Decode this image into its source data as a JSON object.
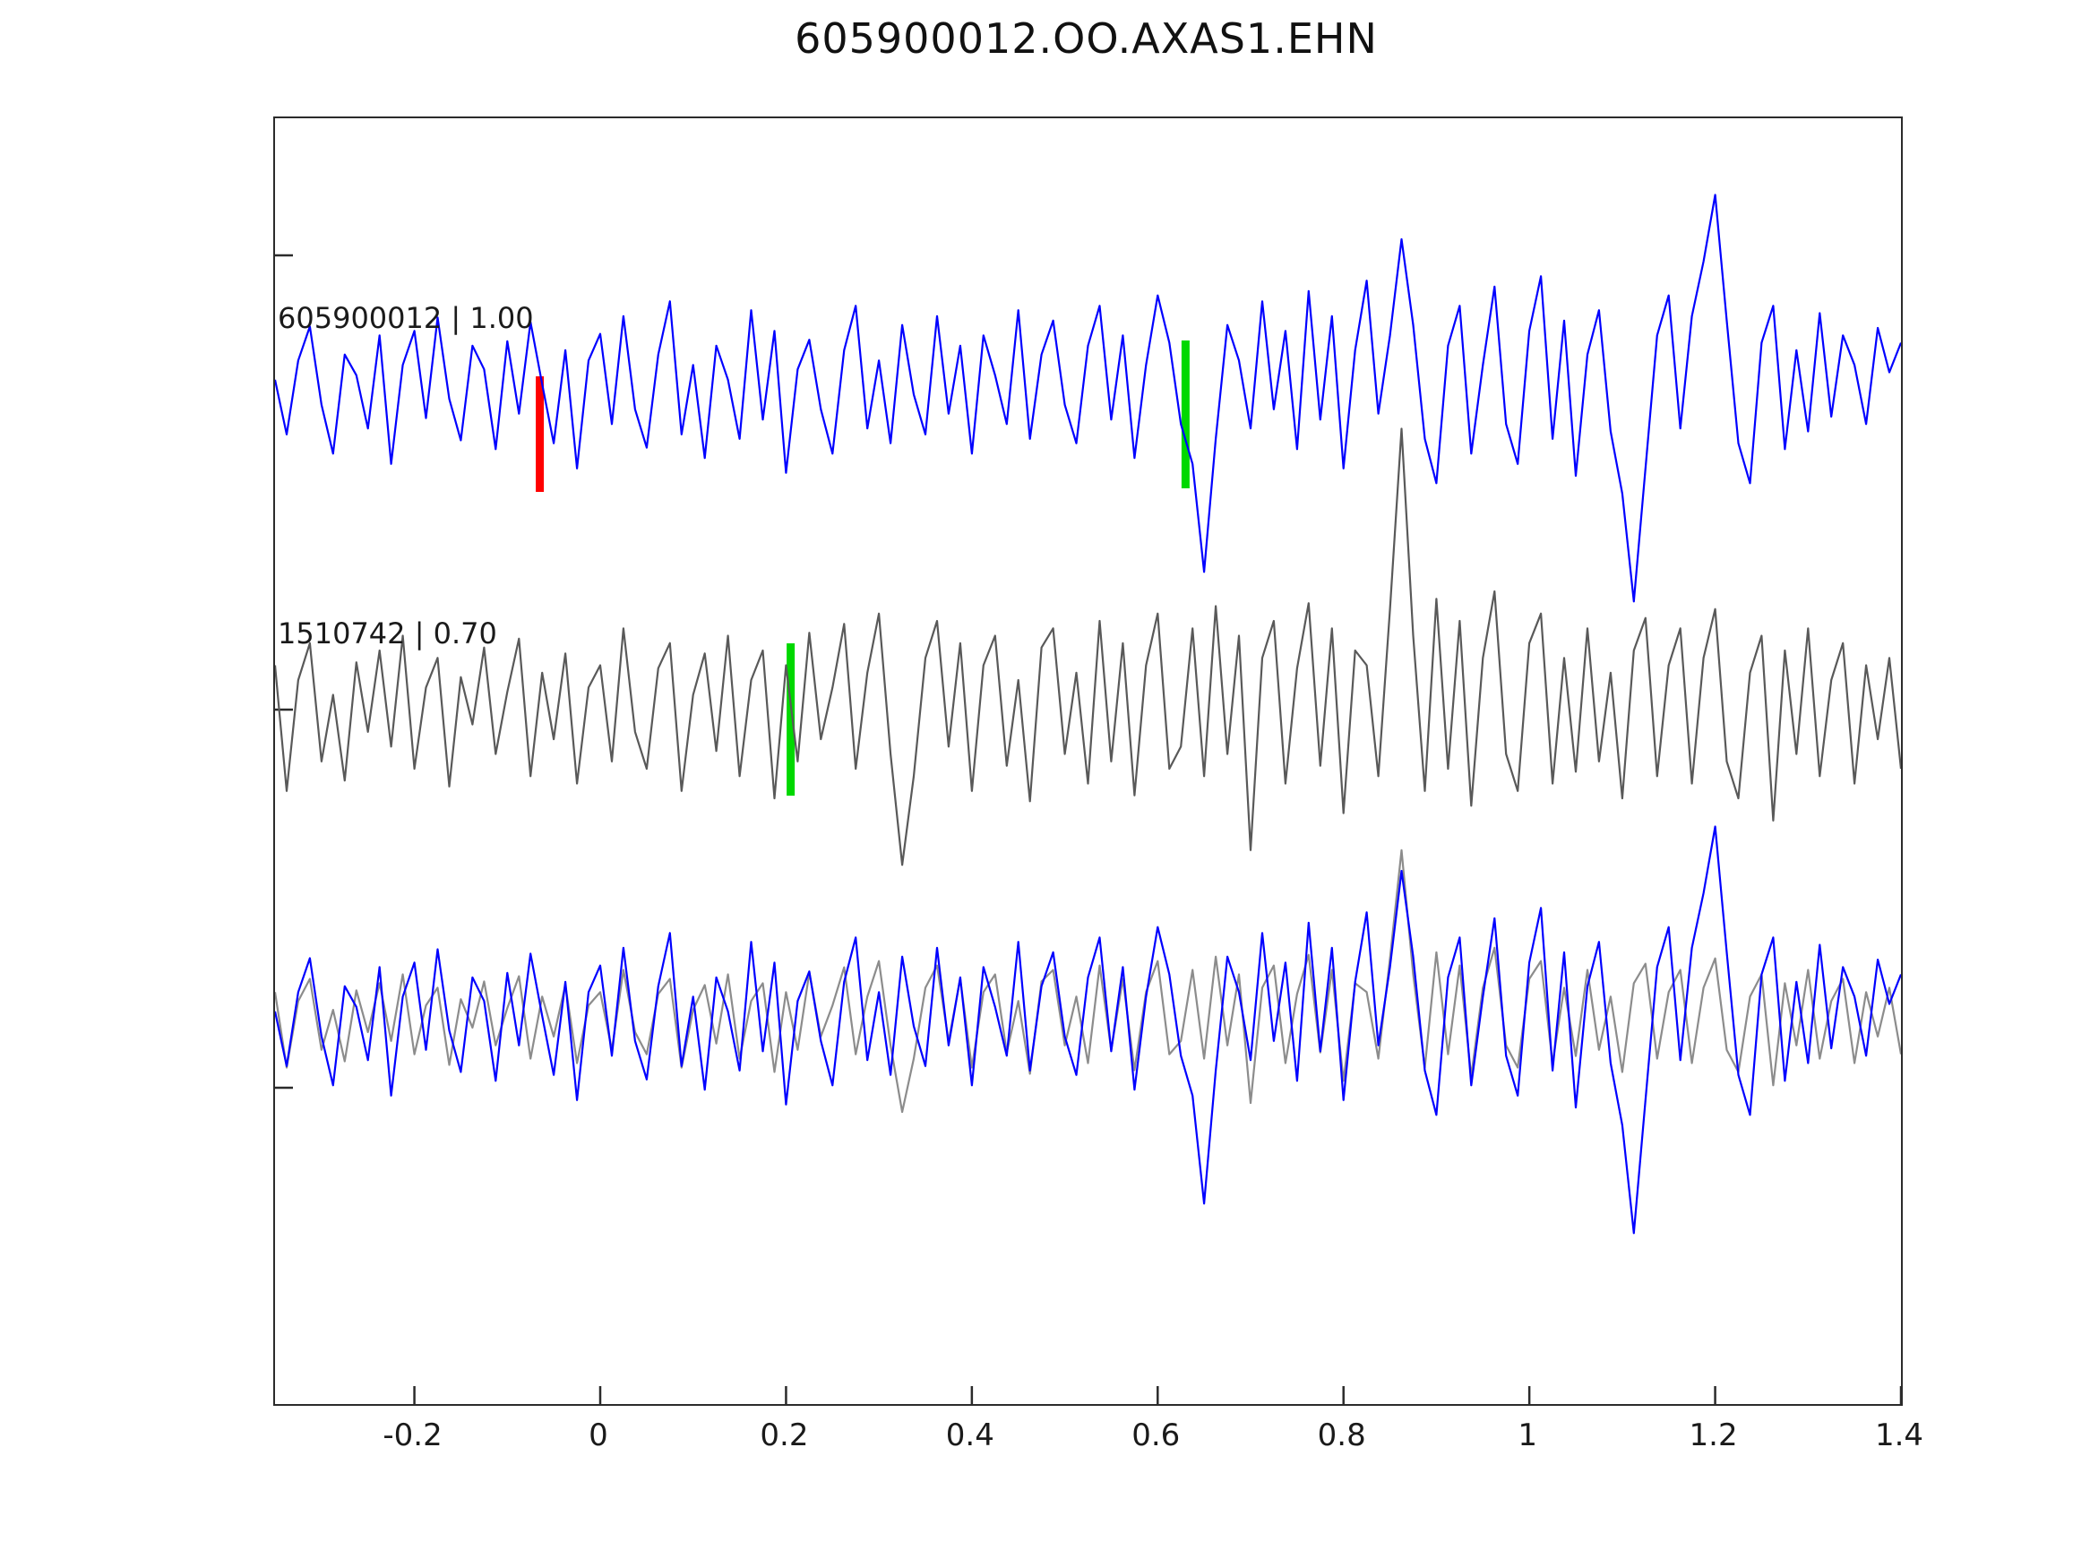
{
  "title": "605900012.OO.AXAS1.EHN",
  "traces": {
    "trace1_label": "605900012 | 1.00",
    "trace2_label": "1510742 | 0.70"
  },
  "colors": {
    "blue": "#0000ff",
    "gray_dark": "#595959",
    "gray_light": "#8c8c8c",
    "red": "#ff0000",
    "green": "#00d800",
    "axis": "#2b2b2b"
  },
  "chart_data": {
    "type": "line",
    "title": "605900012.OO.AXAS1.EHN",
    "xlabel": "",
    "ylabel": "",
    "grid": false,
    "legend_position": "none",
    "xlim": [
      -0.35,
      1.4
    ],
    "x_ticks": [
      -0.2,
      0,
      0.2,
      0.4,
      0.6,
      0.8,
      1,
      1.2,
      1.4
    ],
    "x_tick_labels": [
      "-0.2",
      "0",
      "0.2",
      "0.4",
      "0.6",
      "0.8",
      "1",
      "1.2",
      "1.4"
    ],
    "x_start": -0.35,
    "x_step": 0.0125,
    "rows": [
      {
        "name": "605900012",
        "label": "605900012 | 1.00",
        "series": [
          "blue"
        ]
      },
      {
        "name": "1510742",
        "label": "1510742 | 0.70",
        "series": [
          "gray"
        ]
      },
      {
        "name": "overlay",
        "label": "",
        "series": [
          "gray",
          "blue"
        ]
      }
    ],
    "series": {
      "blue": [
        0.05,
        -0.32,
        0.18,
        0.41,
        -0.12,
        -0.45,
        0.22,
        0.08,
        -0.28,
        0.35,
        -0.52,
        0.15,
        0.38,
        -0.21,
        0.47,
        -0.08,
        -0.36,
        0.28,
        0.12,
        -0.42,
        0.31,
        -0.18,
        0.44,
        0.02,
        -0.38,
        0.25,
        -0.55,
        0.18,
        0.36,
        -0.25,
        0.48,
        -0.15,
        -0.41,
        0.22,
        0.58,
        -0.32,
        0.15,
        -0.48,
        0.28,
        0.05,
        -0.35,
        0.52,
        -0.22,
        0.38,
        -0.58,
        0.12,
        0.32,
        -0.15,
        -0.45,
        0.25,
        0.55,
        -0.28,
        0.18,
        -0.38,
        0.42,
        -0.05,
        -0.32,
        0.48,
        -0.18,
        0.28,
        -0.45,
        0.35,
        0.08,
        -0.25,
        0.52,
        -0.35,
        0.22,
        0.45,
        -0.12,
        -0.38,
        0.28,
        0.55,
        -0.22,
        0.35,
        -0.48,
        0.15,
        0.62,
        0.3,
        -0.25,
        -0.52,
        -1.25,
        -0.35,
        0.42,
        0.18,
        -0.28,
        0.58,
        -0.15,
        0.38,
        -0.42,
        0.65,
        -0.22,
        0.48,
        -0.55,
        0.25,
        0.72,
        -0.18,
        0.35,
        1.0,
        0.42,
        -0.35,
        -0.65,
        0.28,
        0.55,
        -0.45,
        0.15,
        0.68,
        -0.25,
        -0.52,
        0.38,
        0.75,
        -0.35,
        0.45,
        -0.6,
        0.22,
        0.52,
        -0.3,
        -0.72,
        -1.45,
        -0.55,
        0.35,
        0.62,
        -0.28,
        0.48,
        0.85,
        1.3,
        0.45,
        -0.38,
        -0.65,
        0.3,
        0.55,
        -0.42,
        0.25,
        -0.3,
        0.5,
        -0.2,
        0.35,
        0.15,
        -0.25,
        0.4,
        0.1,
        0.3
      ],
      "gray": [
        0.3,
        -0.55,
        0.2,
        0.45,
        -0.35,
        0.1,
        -0.48,
        0.32,
        -0.15,
        0.4,
        -0.25,
        0.5,
        -0.4,
        0.15,
        0.35,
        -0.52,
        0.22,
        -0.1,
        0.42,
        -0.3,
        0.12,
        0.48,
        -0.45,
        0.25,
        -0.2,
        0.38,
        -0.5,
        0.15,
        0.3,
        -0.35,
        0.55,
        -0.15,
        -0.4,
        0.28,
        0.45,
        -0.55,
        0.1,
        0.38,
        -0.28,
        0.5,
        -0.45,
        0.2,
        0.4,
        -0.6,
        0.3,
        -0.35,
        0.52,
        -0.2,
        0.15,
        0.58,
        -0.4,
        0.25,
        0.65,
        -0.3,
        -1.05,
        -0.45,
        0.35,
        0.6,
        -0.25,
        0.45,
        -0.55,
        0.3,
        0.5,
        -0.38,
        0.2,
        -0.62,
        0.42,
        0.55,
        -0.3,
        0.25,
        -0.5,
        0.6,
        -0.35,
        0.45,
        -0.58,
        0.3,
        0.65,
        -0.4,
        -0.25,
        0.55,
        -0.45,
        0.7,
        -0.3,
        0.5,
        -0.95,
        0.35,
        0.6,
        -0.5,
        0.28,
        0.72,
        -0.38,
        0.55,
        -0.7,
        0.4,
        0.3,
        -0.45,
        0.68,
        1.9,
        0.5,
        -0.55,
        0.75,
        -0.4,
        0.6,
        -0.65,
        0.35,
        0.8,
        -0.3,
        -0.55,
        0.45,
        0.65,
        -0.5,
        0.35,
        -0.42,
        0.55,
        -0.35,
        0.25,
        -0.6,
        0.4,
        0.62,
        -0.45,
        0.3,
        0.55,
        -0.5,
        0.35,
        0.68,
        -0.35,
        -0.6,
        0.25,
        0.5,
        -0.75,
        0.4,
        -0.3,
        0.55,
        -0.45,
        0.2,
        0.45,
        -0.5,
        0.3,
        -0.2,
        0.35,
        -0.4
      ]
    },
    "markers": [
      {
        "row": 0,
        "x": -0.065,
        "color": "red"
      },
      {
        "row": 0,
        "x": 0.63,
        "color": "green"
      },
      {
        "row": 1,
        "x": 0.205,
        "color": "green"
      }
    ]
  }
}
